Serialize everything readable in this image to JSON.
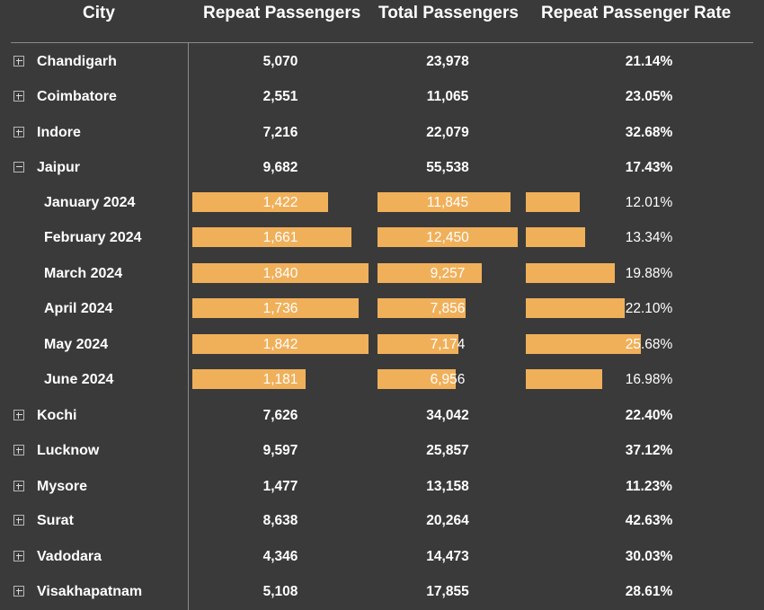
{
  "colors": {
    "background": "#3a3a3a",
    "bar": "#f0b05a",
    "text": "#ffffff",
    "grid": "#8a8a8a"
  },
  "headers": {
    "city": "City",
    "repeat": "Repeat Passengers",
    "total": "Total Passengers",
    "rate": "Repeat Passenger Rate"
  },
  "rows": [
    {
      "city": "Chandigarh",
      "repeat": "5,070",
      "total": "23,978",
      "rate": "21.14%",
      "expanded": false
    },
    {
      "city": "Coimbatore",
      "repeat": "2,551",
      "total": "11,065",
      "rate": "23.05%",
      "expanded": false
    },
    {
      "city": "Indore",
      "repeat": "7,216",
      "total": "22,079",
      "rate": "32.68%",
      "expanded": false
    },
    {
      "city": "Jaipur",
      "repeat": "9,682",
      "total": "55,538",
      "rate": "17.43%",
      "expanded": true,
      "children": [
        {
          "month": "January 2024",
          "repeat": "1,422",
          "total": "11,845",
          "rate": "12.01%",
          "repeat_val": 1422,
          "total_val": 11845,
          "rate_val": 12.01
        },
        {
          "month": "February 2024",
          "repeat": "1,661",
          "total": "12,450",
          "rate": "13.34%",
          "repeat_val": 1661,
          "total_val": 12450,
          "rate_val": 13.34
        },
        {
          "month": "March 2024",
          "repeat": "1,840",
          "total": "9,257",
          "rate": "19.88%",
          "repeat_val": 1840,
          "total_val": 9257,
          "rate_val": 19.88
        },
        {
          "month": "April 2024",
          "repeat": "1,736",
          "total": "7,856",
          "rate": "22.10%",
          "repeat_val": 1736,
          "total_val": 7856,
          "rate_val": 22.1
        },
        {
          "month": "May 2024",
          "repeat": "1,842",
          "total": "7,174",
          "rate": "25.68%",
          "repeat_val": 1842,
          "total_val": 7174,
          "rate_val": 25.68
        },
        {
          "month": "June 2024",
          "repeat": "1,181",
          "total": "6,956",
          "rate": "16.98%",
          "repeat_val": 1181,
          "total_val": 6956,
          "rate_val": 16.98
        }
      ]
    },
    {
      "city": "Kochi",
      "repeat": "7,626",
      "total": "34,042",
      "rate": "22.40%",
      "expanded": false
    },
    {
      "city": "Lucknow",
      "repeat": "9,597",
      "total": "25,857",
      "rate": "37.12%",
      "expanded": false
    },
    {
      "city": "Mysore",
      "repeat": "1,477",
      "total": "13,158",
      "rate": "11.23%",
      "expanded": false
    },
    {
      "city": "Surat",
      "repeat": "8,638",
      "total": "20,264",
      "rate": "42.63%",
      "expanded": false
    },
    {
      "city": "Vadodara",
      "repeat": "4,346",
      "total": "14,473",
      "rate": "30.03%",
      "expanded": false
    },
    {
      "city": "Visakhapatnam",
      "repeat": "5,108",
      "total": "17,855",
      "rate": "28.61%",
      "expanded": false
    }
  ],
  "icons": {
    "expand": "plus-square-icon",
    "collapse": "minus-square-icon"
  }
}
